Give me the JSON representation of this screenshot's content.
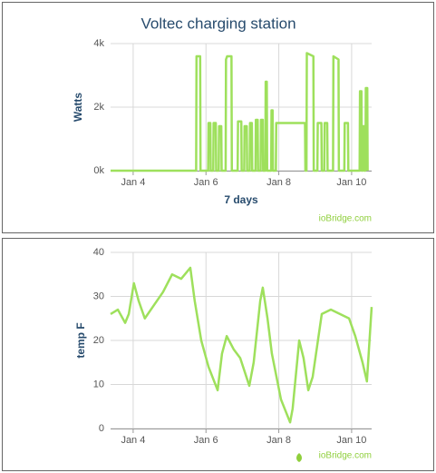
{
  "chart_data": [
    {
      "type": "line",
      "title": "Voltec charging station",
      "y_label": "Watts",
      "x_label": "7 days",
      "credit": "ioBridge.com",
      "color": "#9ee05c",
      "grid": true,
      "xlim": [
        3.38,
        10.55
      ],
      "xticks": [
        {
          "value": 4,
          "label": "Jan 4"
        },
        {
          "value": 6,
          "label": "Jan 6"
        },
        {
          "value": 8,
          "label": "Jan 8"
        },
        {
          "value": 10,
          "label": "Jan 10"
        }
      ],
      "ylim": [
        0,
        4000
      ],
      "yticks": [
        {
          "value": 0,
          "label": "0k"
        },
        {
          "value": 2000,
          "label": "2k"
        },
        {
          "value": 4000,
          "label": "4k"
        }
      ],
      "x": [
        3.38,
        5.73,
        5.74,
        5.84,
        5.85,
        6.06,
        6.07,
        6.12,
        6.13,
        6.2,
        6.21,
        6.27,
        6.28,
        6.35,
        6.36,
        6.42,
        6.43,
        6.54,
        6.55,
        6.58,
        6.7,
        6.71,
        6.87,
        6.88,
        6.97,
        6.98,
        7.05,
        7.06,
        7.12,
        7.13,
        7.2,
        7.21,
        7.26,
        7.27,
        7.36,
        7.37,
        7.42,
        7.43,
        7.5,
        7.51,
        7.56,
        7.57,
        7.63,
        7.64,
        7.67,
        7.68,
        7.79,
        7.8,
        7.83,
        7.84,
        7.92,
        7.93,
        8.72,
        8.73,
        8.76,
        8.77,
        8.95,
        8.96,
        9.06,
        9.07,
        9.17,
        9.18,
        9.25,
        9.26,
        9.33,
        9.34,
        9.49,
        9.5,
        9.64,
        9.65,
        9.8,
        9.81,
        9.9,
        9.91,
        10.22,
        10.23,
        10.27,
        10.28,
        10.3,
        10.31,
        10.34,
        10.35,
        10.38,
        10.39,
        10.43,
        10.44
      ],
      "values": [
        0,
        0,
        3600,
        3600,
        0,
        0,
        1500,
        1500,
        0,
        0,
        1500,
        1500,
        0,
        0,
        1400,
        1400,
        0,
        0,
        3500,
        3600,
        3600,
        0,
        0,
        1550,
        1550,
        0,
        0,
        1400,
        1400,
        0,
        0,
        1500,
        1500,
        0,
        0,
        1600,
        1600,
        0,
        0,
        1600,
        1600,
        0,
        0,
        2800,
        2800,
        0,
        0,
        1900,
        1900,
        0,
        0,
        1500,
        1500,
        0,
        0,
        3700,
        3600,
        0,
        0,
        1500,
        1500,
        0,
        0,
        1500,
        1500,
        0,
        0,
        3600,
        3500,
        0,
        0,
        1500,
        1500,
        0,
        0,
        2500,
        2500,
        0,
        0,
        1400,
        1400,
        0,
        0,
        2600,
        2600,
        0
      ]
    },
    {
      "type": "line",
      "y_label": "temp F",
      "credit": "ioBridge.com",
      "color": "#9ee05c",
      "grid": true,
      "xlim": [
        3.38,
        10.55
      ],
      "xticks": [
        {
          "value": 4,
          "label": "Jan 4"
        },
        {
          "value": 6,
          "label": "Jan 6"
        },
        {
          "value": 8,
          "label": "Jan 8"
        },
        {
          "value": 10,
          "label": "Jan 10"
        }
      ],
      "ylim": [
        0,
        40
      ],
      "yticks": [
        0,
        10,
        20,
        30,
        40
      ],
      "x": [
        3.38,
        3.58,
        3.78,
        3.88,
        4.02,
        4.15,
        4.32,
        4.57,
        4.82,
        5.07,
        5.32,
        5.57,
        5.69,
        5.87,
        6.07,
        6.32,
        6.44,
        6.57,
        6.76,
        6.94,
        7.19,
        7.31,
        7.49,
        7.56,
        7.69,
        7.81,
        8.06,
        8.31,
        8.38,
        8.56,
        8.68,
        8.81,
        8.93,
        9.18,
        9.43,
        9.68,
        9.93,
        10.1,
        10.3,
        10.42,
        10.55
      ],
      "values": [
        26,
        27,
        24,
        26,
        33,
        29,
        25,
        28,
        31,
        35,
        34,
        36.5,
        29,
        20,
        14,
        8.7,
        17,
        21,
        18,
        16,
        9.7,
        15,
        29,
        32,
        25,
        17,
        6.6,
        1.4,
        4.5,
        20,
        16,
        8.7,
        11.7,
        26,
        27,
        26,
        25,
        21,
        15,
        10.7,
        27.6
      ]
    }
  ]
}
